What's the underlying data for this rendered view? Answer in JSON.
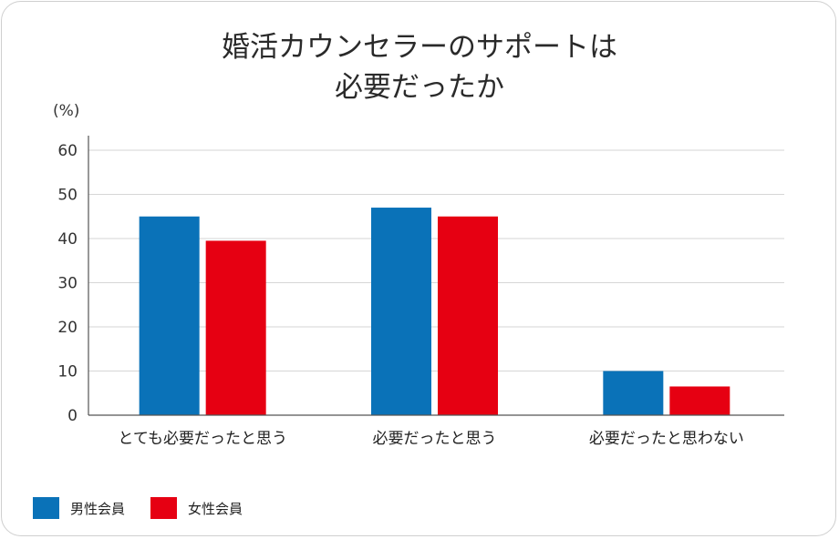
{
  "chart_data": {
    "type": "bar",
    "title": "婚活カウンセラーのサポートは\n必要だったか",
    "ylabel": "(%)",
    "ylim": [
      0,
      60
    ],
    "yticks": [
      0,
      10,
      20,
      30,
      40,
      50,
      60
    ],
    "categories": [
      "とても必要だったと思う",
      "必要だったと思う",
      "必要だったと思わない"
    ],
    "series": [
      {
        "name": "男性会員",
        "color": "#0a72b8",
        "values": [
          45,
          47,
          10
        ]
      },
      {
        "name": "女性会員",
        "color": "#e60012",
        "values": [
          39.5,
          45,
          6.5
        ]
      }
    ],
    "grid": true,
    "legend_position": "bottom-left"
  }
}
